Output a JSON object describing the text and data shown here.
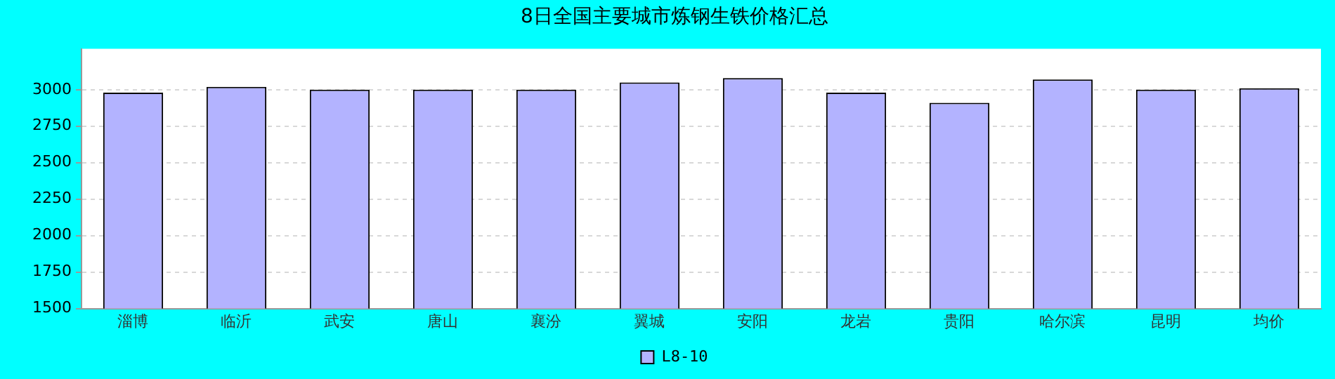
{
  "chart_data": {
    "type": "bar",
    "title": "8日全国主要城市炼钢生铁价格汇总",
    "categories": [
      "淄博",
      "临沂",
      "武安",
      "唐山",
      "襄汾",
      "翼城",
      "安阳",
      "龙岩",
      "贵阳",
      "哈尔滨",
      "昆明",
      "均价"
    ],
    "series": [
      {
        "name": "L8-10",
        "color": "#b3b3ff",
        "values": [
          2980,
          3020,
          3000,
          3000,
          3000,
          3050,
          3080,
          2980,
          2910,
          3070,
          3000,
          3010
        ]
      }
    ],
    "ylim": [
      1500,
      3280
    ],
    "yticks": [
      1500,
      1750,
      2000,
      2250,
      2500,
      2750,
      3000
    ],
    "grid": "y",
    "legend": "bottom"
  }
}
